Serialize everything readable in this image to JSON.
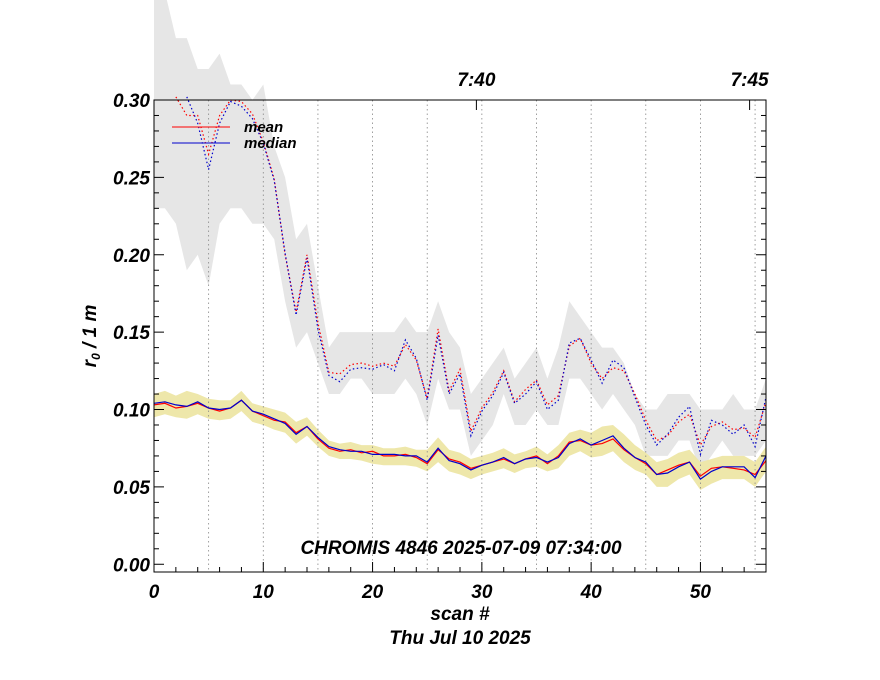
{
  "chart_data": {
    "type": "line",
    "title": "CHROMIS 4846 2025-07-09 07:34:00",
    "xlabel": "scan #",
    "xlabel2": "Thu Jul 10 2025",
    "ylabel_main": "r",
    "ylabel_sub": "0",
    "ylabel_tail": " / 1 m",
    "xlim": [
      0,
      56
    ],
    "ylim": [
      -0.005,
      0.3
    ],
    "x_ticks": [
      0,
      10,
      20,
      30,
      40,
      50
    ],
    "x_tick_labels": [
      "0",
      "10",
      "20",
      "30",
      "40",
      "50"
    ],
    "y_ticks": [
      0.0,
      0.05,
      0.1,
      0.15,
      0.2,
      0.25,
      0.3
    ],
    "y_tick_labels": [
      "0.00",
      "0.05",
      "0.10",
      "0.15",
      "0.20",
      "0.25",
      "0.30"
    ],
    "top_axis_ticks": [
      {
        "x": 29.5,
        "label": "7:40"
      },
      {
        "x": 54.5,
        "label": "7:45"
      }
    ],
    "grid_x": [
      5,
      10,
      15,
      20,
      25,
      30,
      35,
      40,
      45,
      50,
      55
    ],
    "legend": {
      "position": "top-left",
      "entries": [
        "mean",
        "median"
      ]
    },
    "series": [
      {
        "name": "mean",
        "color": "#ff0000",
        "style": "solid",
        "x": [
          0,
          1,
          2,
          3,
          4,
          5,
          6,
          7,
          8,
          9,
          10,
          11,
          12,
          13,
          14,
          15,
          16,
          17,
          18,
          19,
          20,
          21,
          22,
          23,
          24,
          25,
          26,
          27,
          28,
          29,
          30,
          31,
          32,
          33,
          34,
          35,
          36,
          37,
          38,
          39,
          40,
          41,
          42,
          43,
          44,
          45,
          46,
          47,
          48,
          49,
          50,
          51,
          52,
          53,
          54,
          55,
          56
        ],
        "y": [
          0.103,
          0.104,
          0.101,
          0.102,
          0.104,
          0.101,
          0.099,
          0.101,
          0.106,
          0.099,
          0.096,
          0.093,
          0.092,
          0.085,
          0.089,
          0.081,
          0.075,
          0.073,
          0.074,
          0.072,
          0.073,
          0.07,
          0.07,
          0.071,
          0.069,
          0.065,
          0.074,
          0.068,
          0.066,
          0.062,
          0.064,
          0.066,
          0.068,
          0.065,
          0.068,
          0.07,
          0.065,
          0.07,
          0.079,
          0.08,
          0.077,
          0.078,
          0.081,
          0.074,
          0.069,
          0.065,
          0.058,
          0.061,
          0.064,
          0.066,
          0.057,
          0.062,
          0.063,
          0.062,
          0.061,
          0.058,
          0.067
        ]
      },
      {
        "name": "median",
        "color": "#0000cc",
        "style": "solid",
        "x": [
          0,
          1,
          2,
          3,
          4,
          5,
          6,
          7,
          8,
          9,
          10,
          11,
          12,
          13,
          14,
          15,
          16,
          17,
          18,
          19,
          20,
          21,
          22,
          23,
          24,
          25,
          26,
          27,
          28,
          29,
          30,
          31,
          32,
          33,
          34,
          35,
          36,
          37,
          38,
          39,
          40,
          41,
          42,
          43,
          44,
          45,
          46,
          47,
          48,
          49,
          50,
          51,
          52,
          53,
          54,
          55,
          56
        ],
        "y": [
          0.104,
          0.105,
          0.103,
          0.102,
          0.105,
          0.101,
          0.1,
          0.101,
          0.106,
          0.099,
          0.097,
          0.094,
          0.091,
          0.084,
          0.089,
          0.082,
          0.076,
          0.074,
          0.073,
          0.073,
          0.071,
          0.071,
          0.071,
          0.07,
          0.07,
          0.066,
          0.075,
          0.067,
          0.065,
          0.061,
          0.064,
          0.066,
          0.069,
          0.065,
          0.068,
          0.069,
          0.066,
          0.069,
          0.078,
          0.081,
          0.077,
          0.08,
          0.083,
          0.075,
          0.069,
          0.066,
          0.058,
          0.059,
          0.063,
          0.066,
          0.055,
          0.06,
          0.063,
          0.063,
          0.063,
          0.056,
          0.07
        ]
      },
      {
        "name": "mean-upper",
        "color": "#ff0000",
        "style": "dotted",
        "x": [
          2,
          3,
          4,
          5,
          6,
          7,
          8,
          9,
          10,
          11,
          12,
          13,
          14,
          15,
          16,
          17,
          18,
          19,
          20,
          21,
          22,
          23,
          24,
          25,
          26,
          27,
          28,
          29,
          30,
          31,
          32,
          33,
          34,
          35,
          36,
          37,
          38,
          39,
          40,
          41,
          42,
          43,
          44,
          45,
          46,
          47,
          48,
          49,
          50,
          51,
          52,
          53,
          54,
          55,
          56
        ],
        "y": [
          0.302,
          0.29,
          0.29,
          0.265,
          0.29,
          0.3,
          0.299,
          0.291,
          0.273,
          0.249,
          0.2,
          0.163,
          0.2,
          0.156,
          0.124,
          0.123,
          0.129,
          0.13,
          0.128,
          0.13,
          0.128,
          0.142,
          0.132,
          0.107,
          0.152,
          0.112,
          0.126,
          0.086,
          0.101,
          0.111,
          0.125,
          0.105,
          0.113,
          0.119,
          0.103,
          0.109,
          0.141,
          0.146,
          0.13,
          0.12,
          0.127,
          0.125,
          0.11,
          0.093,
          0.08,
          0.083,
          0.092,
          0.097,
          0.077,
          0.089,
          0.092,
          0.087,
          0.088,
          0.082,
          0.105
        ]
      },
      {
        "name": "median-upper",
        "color": "#0000cc",
        "style": "dotted",
        "x": [
          3,
          4,
          5,
          6,
          7,
          8,
          9,
          10,
          11,
          12,
          13,
          14,
          15,
          16,
          17,
          18,
          19,
          20,
          21,
          22,
          23,
          24,
          25,
          26,
          27,
          28,
          29,
          30,
          31,
          32,
          33,
          34,
          35,
          36,
          37,
          38,
          39,
          40,
          41,
          42,
          43,
          44,
          45,
          46,
          47,
          48,
          49,
          50,
          51,
          52,
          53,
          54,
          55,
          56
        ],
        "y": [
          0.302,
          0.285,
          0.255,
          0.285,
          0.299,
          0.296,
          0.288,
          0.272,
          0.248,
          0.201,
          0.161,
          0.198,
          0.152,
          0.122,
          0.118,
          0.126,
          0.127,
          0.126,
          0.129,
          0.125,
          0.145,
          0.133,
          0.106,
          0.148,
          0.11,
          0.123,
          0.083,
          0.099,
          0.109,
          0.124,
          0.104,
          0.11,
          0.118,
          0.1,
          0.106,
          0.143,
          0.146,
          0.132,
          0.117,
          0.132,
          0.127,
          0.108,
          0.09,
          0.077,
          0.084,
          0.095,
          0.102,
          0.071,
          0.093,
          0.09,
          0.084,
          0.09,
          0.076,
          0.108
        ]
      }
    ],
    "bands": [
      {
        "name": "spread-upper",
        "color": "#e6e6e6",
        "x": [
          0,
          1,
          2,
          3,
          4,
          5,
          6,
          7,
          8,
          9,
          10,
          11,
          12,
          13,
          14,
          15,
          16,
          17,
          18,
          19,
          20,
          21,
          22,
          23,
          24,
          25,
          26,
          27,
          28,
          29,
          30,
          31,
          32,
          33,
          34,
          35,
          36,
          37,
          38,
          39,
          40,
          41,
          42,
          43,
          44,
          45,
          46,
          47,
          48,
          49,
          50,
          51,
          52,
          53,
          54,
          55,
          56
        ],
        "upper": [
          0.4,
          0.37,
          0.34,
          0.34,
          0.32,
          0.32,
          0.33,
          0.31,
          0.31,
          0.3,
          0.31,
          0.27,
          0.25,
          0.21,
          0.22,
          0.18,
          0.14,
          0.15,
          0.15,
          0.15,
          0.15,
          0.15,
          0.15,
          0.16,
          0.15,
          0.15,
          0.17,
          0.15,
          0.14,
          0.11,
          0.12,
          0.13,
          0.14,
          0.12,
          0.13,
          0.14,
          0.12,
          0.14,
          0.17,
          0.16,
          0.15,
          0.14,
          0.14,
          0.13,
          0.11,
          0.1,
          0.1,
          0.11,
          0.11,
          0.11,
          0.1,
          0.1,
          0.1,
          0.11,
          0.1,
          0.1,
          0.12
        ],
        "lower": [
          0.23,
          0.23,
          0.22,
          0.19,
          0.2,
          0.18,
          0.22,
          0.23,
          0.23,
          0.22,
          0.22,
          0.21,
          0.17,
          0.14,
          0.15,
          0.13,
          0.11,
          0.11,
          0.12,
          0.12,
          0.11,
          0.11,
          0.11,
          0.12,
          0.11,
          0.09,
          0.12,
          0.1,
          0.1,
          0.07,
          0.08,
          0.09,
          0.11,
          0.09,
          0.09,
          0.1,
          0.09,
          0.09,
          0.12,
          0.12,
          0.11,
          0.1,
          0.11,
          0.1,
          0.09,
          0.07,
          0.07,
          0.07,
          0.08,
          0.08,
          0.06,
          0.07,
          0.08,
          0.07,
          0.07,
          0.07,
          0.08
        ]
      },
      {
        "name": "spread-lower",
        "color": "#eee7aa",
        "x": [
          0,
          1,
          2,
          3,
          4,
          5,
          6,
          7,
          8,
          9,
          10,
          11,
          12,
          13,
          14,
          15,
          16,
          17,
          18,
          19,
          20,
          21,
          22,
          23,
          24,
          25,
          26,
          27,
          28,
          29,
          30,
          31,
          32,
          33,
          34,
          35,
          36,
          37,
          38,
          39,
          40,
          41,
          42,
          43,
          44,
          45,
          46,
          47,
          48,
          49,
          50,
          51,
          52,
          53,
          54,
          55,
          56
        ],
        "upper": [
          0.11,
          0.112,
          0.109,
          0.112,
          0.11,
          0.107,
          0.106,
          0.106,
          0.112,
          0.104,
          0.102,
          0.1,
          0.098,
          0.092,
          0.095,
          0.087,
          0.08,
          0.078,
          0.079,
          0.077,
          0.077,
          0.075,
          0.075,
          0.076,
          0.074,
          0.074,
          0.082,
          0.074,
          0.072,
          0.068,
          0.07,
          0.072,
          0.075,
          0.071,
          0.073,
          0.076,
          0.071,
          0.077,
          0.085,
          0.087,
          0.085,
          0.089,
          0.09,
          0.084,
          0.077,
          0.072,
          0.066,
          0.068,
          0.072,
          0.074,
          0.066,
          0.068,
          0.07,
          0.07,
          0.07,
          0.066,
          0.076
        ],
        "lower": [
          0.095,
          0.097,
          0.095,
          0.094,
          0.097,
          0.094,
          0.093,
          0.094,
          0.099,
          0.092,
          0.09,
          0.087,
          0.085,
          0.078,
          0.083,
          0.076,
          0.07,
          0.068,
          0.068,
          0.067,
          0.065,
          0.064,
          0.064,
          0.064,
          0.063,
          0.06,
          0.066,
          0.06,
          0.058,
          0.055,
          0.058,
          0.06,
          0.062,
          0.059,
          0.062,
          0.063,
          0.06,
          0.062,
          0.07,
          0.073,
          0.069,
          0.07,
          0.073,
          0.066,
          0.061,
          0.058,
          0.05,
          0.05,
          0.055,
          0.058,
          0.048,
          0.052,
          0.055,
          0.055,
          0.055,
          0.05,
          0.06
        ]
      }
    ]
  }
}
